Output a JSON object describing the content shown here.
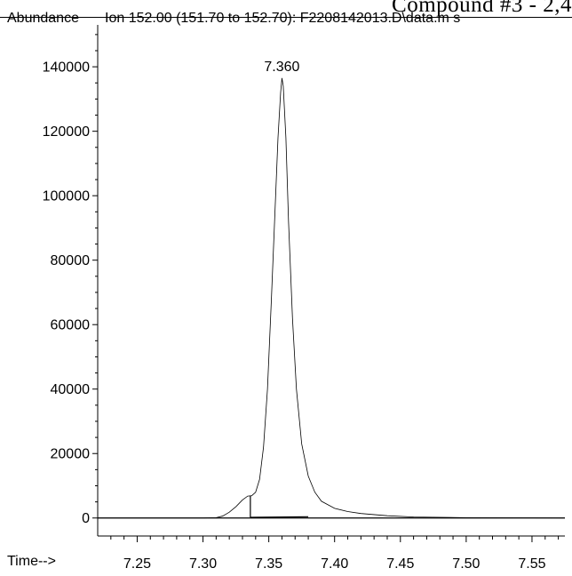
{
  "header": {
    "top_strip_text": "Compound #3 - 2,4",
    "ylabel": "Abundance",
    "title": "Ion 152.00 (151.70 to 152.70): F2208142013.D\\data.m s",
    "xlabel": "Time-->"
  },
  "chart_data": {
    "type": "line",
    "title": "Ion 152.00 (151.70 to 152.70): F2208142013.D\\data.m s",
    "xlabel": "Time-->",
    "ylabel": "Abundance",
    "xlim": [
      7.22,
      7.575
    ],
    "ylim": [
      -2000,
      153000
    ],
    "x_ticks": [
      7.25,
      7.3,
      7.35,
      7.4,
      7.45,
      7.5,
      7.55
    ],
    "x_tick_labels": [
      "7.25",
      "7.30",
      "7.35",
      "7.40",
      "7.45",
      "7.50",
      "7.55"
    ],
    "y_ticks": [
      0,
      20000,
      40000,
      60000,
      80000,
      100000,
      120000,
      140000
    ],
    "y_tick_labels": [
      "0",
      "20000",
      "40000",
      "60000",
      "80000",
      "100000",
      "120000",
      "140000"
    ],
    "grid": false,
    "legend": "none",
    "annotations": [
      {
        "x": 7.36,
        "y": 136500,
        "text": "7.360"
      }
    ],
    "series": [
      {
        "values": [
          [
            7.22,
            0
          ],
          [
            7.3,
            0
          ],
          [
            7.31,
            100
          ],
          [
            7.315,
            600
          ],
          [
            7.32,
            1800
          ],
          [
            7.325,
            3500
          ],
          [
            7.33,
            5600
          ],
          [
            7.334,
            6800
          ],
          [
            7.337,
            6900
          ],
          [
            7.34,
            8000
          ],
          [
            7.343,
            12000
          ],
          [
            7.346,
            22000
          ],
          [
            7.349,
            40000
          ],
          [
            7.352,
            68000
          ],
          [
            7.355,
            98000
          ],
          [
            7.357,
            118000
          ],
          [
            7.359,
            132000
          ],
          [
            7.36,
            136500
          ],
          [
            7.361,
            134000
          ],
          [
            7.363,
            118000
          ],
          [
            7.365,
            92000
          ],
          [
            7.368,
            62000
          ],
          [
            7.371,
            40000
          ],
          [
            7.375,
            23000
          ],
          [
            7.38,
            13000
          ],
          [
            7.385,
            8000
          ],
          [
            7.39,
            5200
          ],
          [
            7.4,
            3000
          ],
          [
            7.41,
            2000
          ],
          [
            7.42,
            1400
          ],
          [
            7.44,
            700
          ],
          [
            7.46,
            300
          ],
          [
            7.5,
            100
          ],
          [
            7.575,
            0
          ]
        ]
      }
    ],
    "baselines": [
      [
        [
          7.336,
          200
        ],
        [
          7.336,
          7000
        ]
      ],
      [
        [
          7.336,
          200
        ],
        [
          7.38,
          400
        ]
      ]
    ],
    "line_color": "#000000"
  }
}
